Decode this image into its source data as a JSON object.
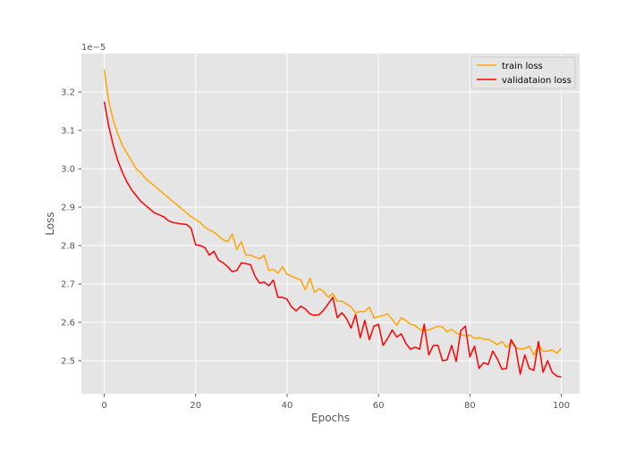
{
  "chart_data": {
    "type": "line",
    "xlabel": "Epochs",
    "ylabel": "Loss",
    "y_offset_label": "1e−5",
    "xlim": [
      -5,
      104
    ],
    "ylim": [
      2.414,
      3.3
    ],
    "x_ticks": [
      0,
      20,
      40,
      60,
      80,
      100
    ],
    "y_ticks": [
      2.5,
      2.6,
      2.7,
      2.8,
      2.9,
      3.0,
      3.1,
      3.2
    ],
    "y_tick_labels": [
      "2.5",
      "2.6",
      "2.7",
      "2.8",
      "2.9",
      "3.0",
      "3.1",
      "3.2"
    ],
    "grid": true,
    "legend_position": "top-right",
    "series": [
      {
        "name": "train loss",
        "color": "#ffa500",
        "values": [
          3.258,
          3.175,
          3.125,
          3.09,
          3.06,
          3.04,
          3.02,
          3.0,
          2.99,
          2.975,
          2.965,
          2.955,
          2.945,
          2.935,
          2.925,
          2.915,
          2.905,
          2.895,
          2.885,
          2.875,
          2.868,
          2.86,
          2.848,
          2.84,
          2.835,
          2.825,
          2.815,
          2.81,
          2.83,
          2.79,
          2.81,
          2.775,
          2.775,
          2.77,
          2.765,
          2.775,
          2.735,
          2.738,
          2.728,
          2.745,
          2.725,
          2.72,
          2.715,
          2.71,
          2.685,
          2.715,
          2.678,
          2.688,
          2.68,
          2.665,
          2.675,
          2.655,
          2.655,
          2.648,
          2.64,
          2.625,
          2.628,
          2.628,
          2.64,
          2.612,
          2.615,
          2.618,
          2.622,
          2.608,
          2.592,
          2.612,
          2.605,
          2.595,
          2.592,
          2.582,
          2.578,
          2.58,
          2.585,
          2.59,
          2.588,
          2.575,
          2.582,
          2.572,
          2.568,
          2.565,
          2.567,
          2.558,
          2.56,
          2.556,
          2.556,
          2.55,
          2.542,
          2.55,
          2.535,
          2.548,
          2.535,
          2.53,
          2.532,
          2.538,
          2.515,
          2.542,
          2.525,
          2.525,
          2.528,
          2.52,
          2.532
        ]
      },
      {
        "name": "validataion loss",
        "color": "#ff0000",
        "values": [
          3.175,
          3.11,
          3.06,
          3.02,
          2.99,
          2.965,
          2.945,
          2.93,
          2.915,
          2.905,
          2.895,
          2.885,
          2.88,
          2.875,
          2.865,
          2.86,
          2.858,
          2.856,
          2.855,
          2.845,
          2.802,
          2.8,
          2.795,
          2.775,
          2.785,
          2.762,
          2.755,
          2.745,
          2.732,
          2.735,
          2.755,
          2.753,
          2.75,
          2.72,
          2.702,
          2.705,
          2.695,
          2.71,
          2.665,
          2.665,
          2.66,
          2.64,
          2.63,
          2.642,
          2.635,
          2.622,
          2.618,
          2.62,
          2.632,
          2.648,
          2.665,
          2.612,
          2.625,
          2.61,
          2.585,
          2.62,
          2.56,
          2.605,
          2.555,
          2.59,
          2.595,
          2.54,
          2.558,
          2.58,
          2.562,
          2.57,
          2.545,
          2.53,
          2.535,
          2.53,
          2.595,
          2.515,
          2.54,
          2.54,
          2.5,
          2.502,
          2.54,
          2.498,
          2.578,
          2.59,
          2.51,
          2.538,
          2.48,
          2.495,
          2.49,
          2.525,
          2.505,
          2.478,
          2.48,
          2.555,
          2.535,
          2.465,
          2.515,
          2.48,
          2.475,
          2.55,
          2.47,
          2.5,
          2.47,
          2.46,
          2.458
        ]
      }
    ]
  }
}
